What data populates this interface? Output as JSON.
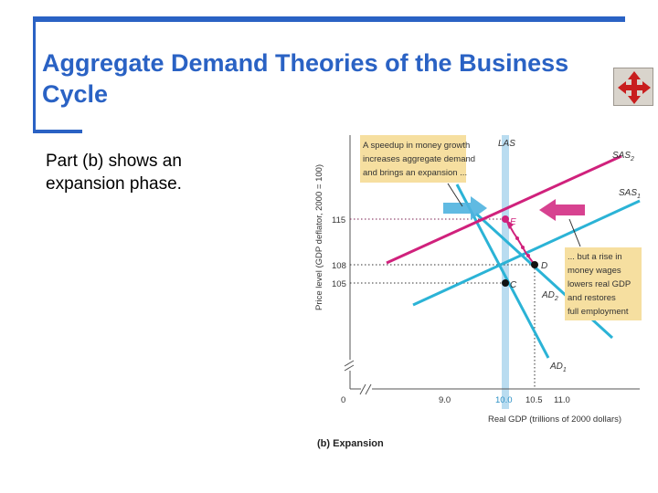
{
  "slide": {
    "title": "Aggregate Demand Theories of the Business Cycle",
    "body": "Part (b) shows an expansion phase.",
    "nav_icon": "move-arrows-icon"
  },
  "figure": {
    "caption": "(b) Expansion",
    "ylabel": "Price level (GDP deflator, 2000 = 100)",
    "xlabel": "Real GDP (trillions of 2000 dollars)",
    "annotation_top": [
      "A speedup in money growth",
      "increases aggregate demand",
      "and brings an expansion ..."
    ],
    "annotation_right": [
      "... but a rise in",
      "money wages",
      "lowers real GDP",
      "and restores",
      "full employment"
    ],
    "curve_labels": {
      "las": "LAS",
      "sas2": "SAS",
      "sas2_sub": "2",
      "sas1": "SAS",
      "sas1_sub": "1",
      "ad1": "AD",
      "ad1_sub": "1",
      "ad2": "AD",
      "ad2_sub": "2"
    },
    "point_labels": {
      "c": "C",
      "d": "D",
      "e": "E"
    },
    "ticks_y": [
      "115",
      "108",
      "105"
    ],
    "ticks_x": [
      "0",
      "9.0",
      "10.0",
      "10.5",
      "11.0"
    ],
    "colors": {
      "sas": "#d0217c",
      "ad": "#2bb3d6",
      "las": "#a9d3ec",
      "annotation_box": "#f6dfa0",
      "title": "#2a62c4"
    },
    "chart_data": {
      "type": "line",
      "xlabel": "Real GDP (trillions of 2000 dollars)",
      "ylabel": "Price level (GDP deflator, 2000 = 100)",
      "x_ticks": [
        0,
        9.0,
        10.0,
        10.5,
        11.0
      ],
      "y_ticks": [
        105,
        108,
        115
      ],
      "series": [
        {
          "name": "LAS",
          "points": [
            [
              10.0,
              96
            ],
            [
              10.0,
              122
            ]
          ]
        },
        {
          "name": "SAS1",
          "points": [
            [
              9.0,
              99.5
            ],
            [
              10.5,
              108
            ],
            [
              11.5,
              113.5
            ]
          ]
        },
        {
          "name": "SAS2",
          "points": [
            [
              8.5,
              108
            ],
            [
              10.0,
              115
            ],
            [
              11.5,
              122
            ]
          ]
        },
        {
          "name": "AD1",
          "points": [
            [
              9.3,
              114
            ],
            [
              10.0,
              105
            ],
            [
              10.7,
              96
            ]
          ]
        },
        {
          "name": "AD2",
          "points": [
            [
              9.5,
              119
            ],
            [
              10.0,
              115
            ],
            [
              10.5,
              108
            ],
            [
              11.0,
              101
            ]
          ]
        }
      ],
      "points": [
        {
          "name": "C",
          "x": 10.0,
          "y": 105
        },
        {
          "name": "D",
          "x": 10.5,
          "y": 108
        },
        {
          "name": "E",
          "x": 10.0,
          "y": 115
        }
      ]
    }
  }
}
